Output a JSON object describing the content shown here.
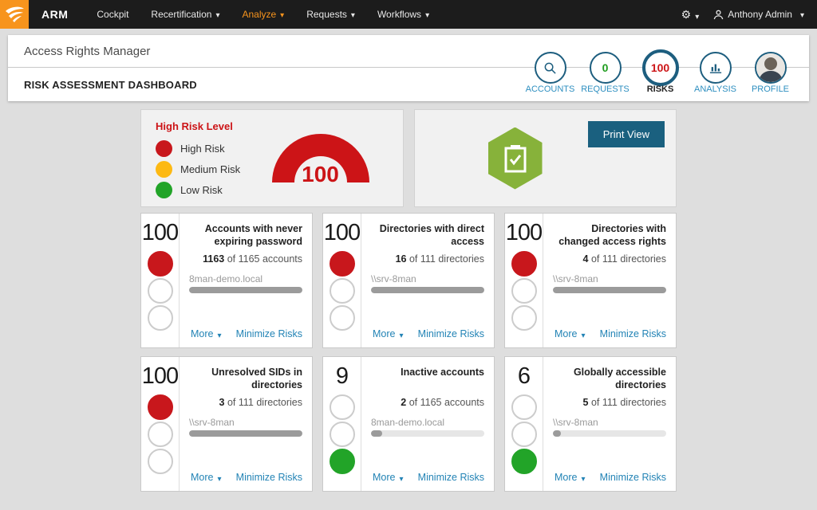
{
  "navbar": {
    "brand": "ARM",
    "items": [
      {
        "label": "Cockpit"
      },
      {
        "label": "Recertification"
      },
      {
        "label": "Analyze"
      },
      {
        "label": "Requests"
      },
      {
        "label": "Workflows"
      }
    ],
    "user": "Anthony Admin"
  },
  "header": {
    "app_title": "Access Rights Manager",
    "page_title": "RISK ASSESSMENT DASHBOARD",
    "nav_circles": [
      {
        "label": "ACCOUNTS"
      },
      {
        "label": "REQUESTS",
        "value": "0"
      },
      {
        "label": "RISKS",
        "value": "100"
      },
      {
        "label": "ANALYSIS"
      },
      {
        "label": "PROFILE"
      }
    ]
  },
  "risk_panel": {
    "title": "High Risk Level",
    "legend": [
      {
        "label": "High Risk",
        "color": "#c8171c"
      },
      {
        "label": "Medium Risk",
        "color": "#fdb913"
      },
      {
        "label": "Low Risk",
        "color": "#22a428"
      }
    ],
    "gauge_value": "100"
  },
  "print_panel": {
    "button": "Print View"
  },
  "card_labels": {
    "more": "More",
    "minimize": "Minimize Risks"
  },
  "cards": [
    {
      "score": "100",
      "level": "high",
      "title": "Accounts with never expiring password",
      "count": "1163",
      "count_suffix": "of 1165 accounts",
      "scope": "8man-demo.local",
      "progress": 100
    },
    {
      "score": "100",
      "level": "high",
      "title": "Directories with direct access",
      "count": "16",
      "count_suffix": "of 111 directories",
      "scope": "\\\\srv-8man",
      "progress": 100
    },
    {
      "score": "100",
      "level": "high",
      "title": "Directories with changed access rights",
      "count": "4",
      "count_suffix": "of 111 directories",
      "scope": "\\\\srv-8man",
      "progress": 100
    },
    {
      "score": "100",
      "level": "high",
      "title": "Unresolved SIDs in directories",
      "count": "3",
      "count_suffix": "of 111 directories",
      "scope": "\\\\srv-8man",
      "progress": 100
    },
    {
      "score": "9",
      "level": "low",
      "title": "Inactive accounts",
      "count": "2",
      "count_suffix": "of 1165 accounts",
      "scope": "8man-demo.local",
      "progress": 10
    },
    {
      "score": "6",
      "level": "low",
      "title": "Globally accessible directories",
      "count": "5",
      "count_suffix": "of 111 directories",
      "scope": "\\\\srv-8man",
      "progress": 7
    }
  ],
  "colors": {
    "accent_orange": "#f7941d",
    "risk_red": "#c8171c",
    "risk_yellow": "#fdb913",
    "risk_green": "#22a428",
    "link_blue": "#2283b5",
    "button_teal": "#1a607f"
  }
}
